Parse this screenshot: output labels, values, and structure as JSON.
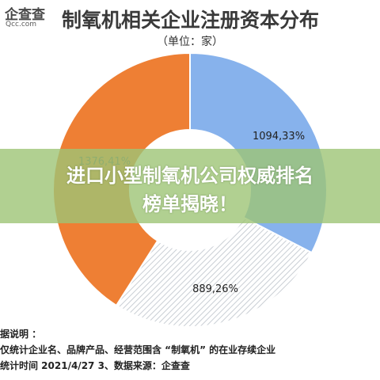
{
  "logo": {
    "main": "企查查",
    "sub": "Qcc.com"
  },
  "title": "制氧机相关企业注册资本分布",
  "unit": "（单位：家）",
  "chart_data": {
    "type": "pie",
    "donut": true,
    "categories": [
      "",
      "",
      ""
    ],
    "values": [
      1094,
      889,
      1376
    ],
    "percents": [
      33,
      26,
      41
    ],
    "labels": [
      "1094,33%",
      "889,26%",
      "1376,41%"
    ],
    "colors": [
      "#87b2ec",
      "#d9dde2",
      "#ee7f34"
    ]
  },
  "banner": {
    "line1": "进口小型制氧机公司权威排名",
    "line2": "榜单揭晓！"
  },
  "notes": {
    "line1": "据说明 ：",
    "line2": "仅统计企业名、品牌产品、经营范围含 “制氧机” 的在业存续企业",
    "line3": "统计时间  2021/4/27     3、数据来源：企查查"
  }
}
